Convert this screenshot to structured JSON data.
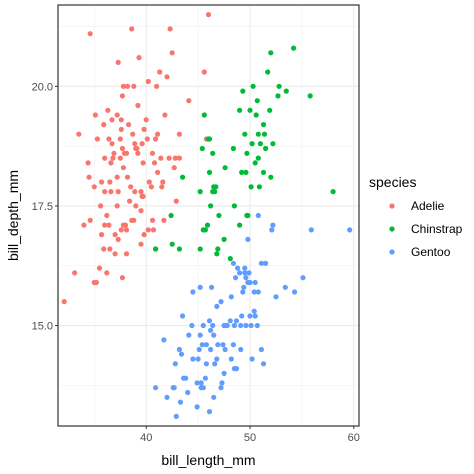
{
  "chart_data": {
    "type": "scatter",
    "title": "",
    "xlabel": "bill_length_mm",
    "ylabel": "bill_depth_mm",
    "xlim": [
      31.5,
      60.5
    ],
    "ylim": [
      12.9,
      21.7
    ],
    "x_ticks": [
      40,
      50,
      60
    ],
    "y_ticks": [
      15.0,
      17.5,
      20.0
    ],
    "x_tick_labels": [
      "40",
      "50",
      "60"
    ],
    "y_tick_labels": [
      "15.0",
      "17.5",
      "20.0"
    ],
    "grid": true,
    "legend": {
      "title": "species",
      "position": "right"
    },
    "series": [
      {
        "name": "Adelie",
        "color": "#F8766D",
        "points": [
          [
            32.1,
            15.5
          ],
          [
            33.1,
            16.1
          ],
          [
            33.5,
            19.0
          ],
          [
            34.0,
            17.1
          ],
          [
            34.4,
            18.4
          ],
          [
            34.5,
            18.1
          ],
          [
            34.6,
            21.1
          ],
          [
            34.6,
            17.2
          ],
          [
            35.0,
            17.9
          ],
          [
            35.0,
            15.9
          ],
          [
            35.1,
            19.4
          ],
          [
            35.2,
            15.9
          ],
          [
            35.3,
            18.9
          ],
          [
            35.5,
            16.2
          ],
          [
            35.6,
            17.5
          ],
          [
            35.7,
            16.9
          ],
          [
            35.7,
            18.0
          ],
          [
            35.9,
            19.2
          ],
          [
            35.9,
            16.6
          ],
          [
            36.0,
            18.5
          ],
          [
            36.0,
            17.8
          ],
          [
            36.0,
            17.1
          ],
          [
            36.2,
            17.3
          ],
          [
            36.2,
            16.1
          ],
          [
            36.3,
            19.5
          ],
          [
            36.4,
            17.1
          ],
          [
            36.5,
            18.0
          ],
          [
            36.5,
            16.6
          ],
          [
            36.6,
            17.8
          ],
          [
            36.6,
            18.4
          ],
          [
            36.7,
            19.3
          ],
          [
            36.7,
            18.8
          ],
          [
            36.8,
            18.5
          ],
          [
            36.9,
            18.6
          ],
          [
            37.0,
            16.9
          ],
          [
            37.0,
            16.5
          ],
          [
            37.2,
            18.1
          ],
          [
            37.2,
            19.4
          ],
          [
            37.3,
            20.5
          ],
          [
            37.3,
            17.8
          ],
          [
            37.3,
            16.8
          ],
          [
            37.5,
            18.9
          ],
          [
            37.5,
            18.5
          ],
          [
            37.6,
            19.1
          ],
          [
            37.6,
            17.0
          ],
          [
            37.6,
            19.3
          ],
          [
            37.7,
            18.7
          ],
          [
            37.7,
            16.0
          ],
          [
            37.7,
            19.8
          ],
          [
            37.8,
            18.3
          ],
          [
            37.8,
            17.1
          ],
          [
            37.8,
            20.0
          ],
          [
            37.9,
            18.6
          ],
          [
            38.0,
            17.1
          ],
          [
            38.1,
            18.6
          ],
          [
            38.1,
            17.0
          ],
          [
            38.1,
            16.5
          ],
          [
            38.2,
            18.1
          ],
          [
            38.2,
            20.0
          ],
          [
            38.3,
            19.2
          ],
          [
            38.5,
            17.9
          ],
          [
            38.6,
            21.2
          ],
          [
            38.6,
            17.2
          ],
          [
            38.7,
            19.0
          ],
          [
            38.8,
            17.2
          ],
          [
            38.8,
            20.0
          ],
          [
            38.9,
            18.8
          ],
          [
            38.9,
            17.8
          ],
          [
            39.0,
            17.5
          ],
          [
            39.0,
            18.7
          ],
          [
            39.1,
            18.7
          ],
          [
            39.2,
            19.6
          ],
          [
            39.2,
            18.6
          ],
          [
            39.3,
            20.6
          ],
          [
            39.5,
            17.4
          ],
          [
            39.5,
            16.7
          ],
          [
            39.5,
            17.8
          ],
          [
            39.6,
            17.7
          ],
          [
            39.6,
            18.8
          ],
          [
            39.7,
            18.4
          ],
          [
            39.7,
            17.7
          ],
          [
            39.8,
            19.1
          ],
          [
            40.1,
            18.9
          ],
          [
            40.2,
            17.0
          ],
          [
            40.2,
            20.1
          ],
          [
            40.3,
            18.0
          ],
          [
            40.5,
            17.9
          ],
          [
            40.6,
            18.6
          ],
          [
            40.6,
            17.2
          ],
          [
            40.7,
            17.0
          ],
          [
            40.8,
            18.4
          ],
          [
            40.9,
            18.9
          ],
          [
            40.9,
            16.6
          ],
          [
            41.0,
            20.0
          ],
          [
            41.1,
            19.0
          ],
          [
            41.1,
            18.2
          ],
          [
            41.3,
            20.3
          ],
          [
            41.4,
            18.5
          ],
          [
            41.5,
            17.9
          ],
          [
            41.6,
            18.0
          ],
          [
            41.8,
            19.4
          ],
          [
            42.0,
            20.2
          ],
          [
            42.2,
            18.5
          ],
          [
            42.3,
            21.2
          ],
          [
            42.5,
            20.7
          ],
          [
            42.7,
            18.3
          ],
          [
            42.8,
            18.5
          ],
          [
            42.9,
            17.6
          ],
          [
            43.2,
            18.5
          ],
          [
            43.2,
            19.0
          ],
          [
            44.1,
            19.7
          ],
          [
            45.6,
            20.3
          ],
          [
            45.8,
            18.9
          ],
          [
            46.0,
            21.5
          ],
          [
            40.0,
            19.3
          ],
          [
            37.2,
            17.5
          ],
          [
            36.4,
            18.9
          ],
          [
            39.8,
            16.9
          ],
          [
            38.4,
            17.6
          ],
          [
            41.7,
            17.2
          ]
        ]
      },
      {
        "name": "Chinstrap",
        "color": "#00BA38",
        "points": [
          [
            40.9,
            16.6
          ],
          [
            42.4,
            17.3
          ],
          [
            42.5,
            16.7
          ],
          [
            43.2,
            16.6
          ],
          [
            43.5,
            18.1
          ],
          [
            45.2,
            16.6
          ],
          [
            45.2,
            17.8
          ],
          [
            45.4,
            18.7
          ],
          [
            45.5,
            17.0
          ],
          [
            45.6,
            19.4
          ],
          [
            45.7,
            17.0
          ],
          [
            45.9,
            17.1
          ],
          [
            46.0,
            18.9
          ],
          [
            46.1,
            18.2
          ],
          [
            46.2,
            17.5
          ],
          [
            46.4,
            18.6
          ],
          [
            46.4,
            17.8
          ],
          [
            46.5,
            17.9
          ],
          [
            46.6,
            17.8
          ],
          [
            46.7,
            17.9
          ],
          [
            46.8,
            16.5
          ],
          [
            46.9,
            16.6
          ],
          [
            47.0,
            17.3
          ],
          [
            47.5,
            16.8
          ],
          [
            47.6,
            18.3
          ],
          [
            48.1,
            16.4
          ],
          [
            48.5,
            17.5
          ],
          [
            49.0,
            19.5
          ],
          [
            49.2,
            18.2
          ],
          [
            49.3,
            19.9
          ],
          [
            49.5,
            19.0
          ],
          [
            49.6,
            18.2
          ],
          [
            49.7,
            18.6
          ],
          [
            49.8,
            17.3
          ],
          [
            50.0,
            19.5
          ],
          [
            50.1,
            17.9
          ],
          [
            50.2,
            18.8
          ],
          [
            50.3,
            20.0
          ],
          [
            50.5,
            18.4
          ],
          [
            50.6,
            19.4
          ],
          [
            50.7,
            19.7
          ],
          [
            50.8,
            18.5
          ],
          [
            50.8,
            19.0
          ],
          [
            50.9,
            17.9
          ],
          [
            51.0,
            18.8
          ],
          [
            51.3,
            18.2
          ],
          [
            51.3,
            19.2
          ],
          [
            51.4,
            19.0
          ],
          [
            51.5,
            18.7
          ],
          [
            51.7,
            20.3
          ],
          [
            51.9,
            19.5
          ],
          [
            52.0,
            18.1
          ],
          [
            52.0,
            20.7
          ],
          [
            52.2,
            18.8
          ],
          [
            52.7,
            19.8
          ],
          [
            52.8,
            20.0
          ],
          [
            53.5,
            19.9
          ],
          [
            54.2,
            20.8
          ],
          [
            55.8,
            19.8
          ],
          [
            58.0,
            17.8
          ],
          [
            49.7,
            17.3
          ],
          [
            49.0,
            17.1
          ],
          [
            46.1,
            18.9
          ],
          [
            48.4,
            18.7
          ]
        ]
      },
      {
        "name": "Gentoo",
        "color": "#619CFF",
        "points": [
          [
            40.9,
            13.7
          ],
          [
            41.7,
            14.7
          ],
          [
            42.0,
            13.5
          ],
          [
            42.6,
            13.7
          ],
          [
            42.7,
            13.7
          ],
          [
            42.8,
            14.2
          ],
          [
            42.9,
            13.1
          ],
          [
            43.2,
            14.5
          ],
          [
            43.3,
            13.4
          ],
          [
            43.4,
            14.4
          ],
          [
            43.5,
            15.2
          ],
          [
            43.6,
            13.9
          ],
          [
            43.8,
            13.9
          ],
          [
            44.0,
            13.6
          ],
          [
            44.4,
            15.0
          ],
          [
            44.5,
            14.3
          ],
          [
            44.5,
            15.7
          ],
          [
            44.9,
            13.3
          ],
          [
            44.9,
            13.8
          ],
          [
            45.0,
            14.3
          ],
          [
            45.1,
            14.5
          ],
          [
            45.2,
            15.8
          ],
          [
            45.2,
            14.8
          ],
          [
            45.3,
            13.7
          ],
          [
            45.3,
            13.8
          ],
          [
            45.4,
            14.6
          ],
          [
            45.5,
            13.7
          ],
          [
            45.5,
            15.0
          ],
          [
            45.7,
            13.9
          ],
          [
            45.8,
            14.6
          ],
          [
            45.8,
            14.2
          ],
          [
            46.1,
            13.2
          ],
          [
            46.1,
            15.1
          ],
          [
            46.2,
            14.5
          ],
          [
            46.2,
            14.9
          ],
          [
            46.3,
            15.8
          ],
          [
            46.4,
            15.0
          ],
          [
            46.5,
            13.5
          ],
          [
            46.5,
            14.8
          ],
          [
            46.6,
            14.2
          ],
          [
            46.8,
            15.4
          ],
          [
            46.8,
            14.3
          ],
          [
            46.9,
            14.6
          ],
          [
            47.2,
            13.7
          ],
          [
            47.2,
            15.5
          ],
          [
            47.3,
            13.8
          ],
          [
            47.4,
            14.6
          ],
          [
            47.5,
            14.0
          ],
          [
            47.5,
            15.0
          ],
          [
            47.6,
            14.5
          ],
          [
            47.7,
            15.0
          ],
          [
            47.8,
            15.0
          ],
          [
            48.1,
            15.1
          ],
          [
            48.2,
            14.3
          ],
          [
            48.2,
            15.6
          ],
          [
            48.4,
            14.6
          ],
          [
            48.4,
            16.3
          ],
          [
            48.5,
            14.1
          ],
          [
            48.5,
            15.0
          ],
          [
            48.6,
            16.0
          ],
          [
            48.7,
            14.1
          ],
          [
            48.7,
            15.1
          ],
          [
            48.8,
            16.2
          ],
          [
            49.0,
            16.1
          ],
          [
            49.1,
            14.5
          ],
          [
            49.1,
            15.0
          ],
          [
            49.2,
            15.2
          ],
          [
            49.3,
            15.7
          ],
          [
            49.4,
            15.8
          ],
          [
            49.5,
            16.1
          ],
          [
            49.5,
            16.2
          ],
          [
            49.6,
            15.0
          ],
          [
            49.6,
            16.0
          ],
          [
            49.8,
            15.9
          ],
          [
            49.8,
            16.8
          ],
          [
            49.9,
            16.1
          ],
          [
            50.0,
            15.2
          ],
          [
            50.0,
            15.9
          ],
          [
            50.1,
            15.0
          ],
          [
            50.2,
            14.3
          ],
          [
            50.4,
            15.3
          ],
          [
            50.4,
            15.7
          ],
          [
            50.5,
            15.2
          ],
          [
            50.5,
            15.9
          ],
          [
            50.7,
            15.0
          ],
          [
            50.8,
            15.7
          ],
          [
            50.8,
            17.3
          ],
          [
            51.1,
            14.5
          ],
          [
            51.1,
            16.3
          ],
          [
            51.3,
            14.2
          ],
          [
            51.5,
            16.3
          ],
          [
            52.1,
            17.0
          ],
          [
            52.2,
            17.1
          ],
          [
            52.5,
            15.6
          ],
          [
            53.4,
            15.8
          ],
          [
            54.3,
            15.7
          ],
          [
            55.1,
            16.0
          ],
          [
            55.9,
            17.0
          ],
          [
            59.6,
            17.0
          ],
          [
            44.1,
            14.8
          ]
        ]
      }
    ]
  }
}
